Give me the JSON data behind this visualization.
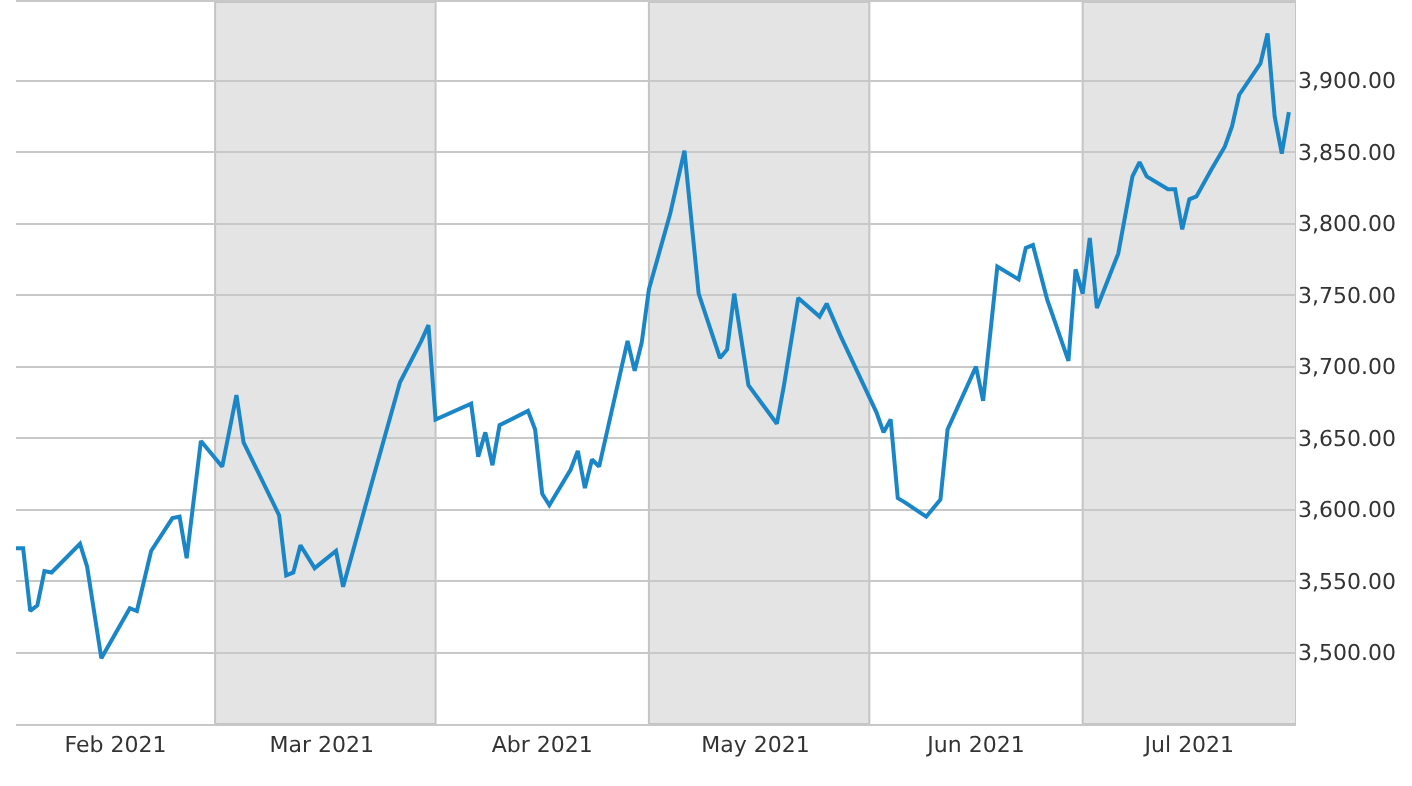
{
  "chart_data": {
    "type": "line",
    "x": [
      "2021-02-01",
      "2021-02-02",
      "2021-02-03",
      "2021-02-04",
      "2021-02-05",
      "2021-02-06",
      "2021-02-10",
      "2021-02-11",
      "2021-02-13",
      "2021-02-17",
      "2021-02-18",
      "2021-02-20",
      "2021-02-23",
      "2021-02-24",
      "2021-02-25",
      "2021-02-27",
      "2021-03-02",
      "2021-03-04",
      "2021-03-05",
      "2021-03-10",
      "2021-03-11",
      "2021-03-12",
      "2021-03-13",
      "2021-03-15",
      "2021-03-18",
      "2021-03-19",
      "2021-03-23",
      "2021-03-27",
      "2021-03-30",
      "2021-03-31",
      "2021-04-01",
      "2021-04-06",
      "2021-04-07",
      "2021-04-08",
      "2021-04-09",
      "2021-04-10",
      "2021-04-14",
      "2021-04-15",
      "2021-04-16",
      "2021-04-17",
      "2021-04-20",
      "2021-04-21",
      "2021-04-22",
      "2021-04-23",
      "2021-04-24",
      "2021-04-28",
      "2021-04-29",
      "2021-04-30",
      "2021-05-01",
      "2021-05-04",
      "2021-05-06",
      "2021-05-08",
      "2021-05-11",
      "2021-05-12",
      "2021-05-13",
      "2021-05-15",
      "2021-05-19",
      "2021-05-20",
      "2021-05-22",
      "2021-05-25",
      "2021-05-26",
      "2021-05-28",
      "2021-06-02",
      "2021-06-03",
      "2021-06-04",
      "2021-06-05",
      "2021-06-06",
      "2021-06-09",
      "2021-06-11",
      "2021-06-12",
      "2021-06-16",
      "2021-06-17",
      "2021-06-19",
      "2021-06-22",
      "2021-06-23",
      "2021-06-24",
      "2021-06-26",
      "2021-06-29",
      "2021-06-30",
      "2021-07-01",
      "2021-07-02",
      "2021-07-03",
      "2021-07-06",
      "2021-07-08",
      "2021-07-09",
      "2021-07-10",
      "2021-07-13",
      "2021-07-14",
      "2021-07-15",
      "2021-07-16",
      "2021-07-17",
      "2021-07-19",
      "2021-07-21",
      "2021-07-22",
      "2021-07-23",
      "2021-07-26",
      "2021-07-27",
      "2021-07-28",
      "2021-07-29",
      "2021-07-30"
    ],
    "series": [
      {
        "color": "#1a86c8",
        "values": [
          3573,
          3573,
          3529,
          3533,
          3557,
          3556,
          3576,
          3560,
          3496,
          3531,
          3529,
          3571,
          3594,
          3595,
          3566,
          3648,
          3630,
          3680,
          3647,
          3596,
          3554,
          3556,
          3575,
          3559,
          3571,
          3546,
          3618,
          3689,
          3718,
          3729,
          3663,
          3674,
          3637,
          3654,
          3631,
          3659,
          3669,
          3656,
          3611,
          3603,
          3628,
          3641,
          3615,
          3635,
          3630,
          3718,
          3697,
          3717,
          3754,
          3807,
          3851,
          3751,
          3706,
          3712,
          3751,
          3687,
          3660,
          3687,
          3748,
          3735,
          3744,
          3721,
          3668,
          3654,
          3663,
          3608,
          3605,
          3595,
          3607,
          3656,
          3700,
          3676,
          3770,
          3761,
          3783,
          3785,
          3747,
          3704,
          3768,
          3751,
          3790,
          3741,
          3779,
          3833,
          3843,
          3833,
          3824,
          3824,
          3796,
          3817,
          3819,
          3837,
          3854,
          3868,
          3890,
          3912,
          3933,
          3875,
          3849,
          3878
        ]
      }
    ],
    "xlim": [
      "2021-02-01",
      "2021-07-31"
    ],
    "xticks": [
      {
        "value": "2021-02-15",
        "label": "Feb 2021"
      },
      {
        "value": "2021-03-16",
        "label": "Mar 2021"
      },
      {
        "value": "2021-04-16",
        "label": "Abr 2021"
      },
      {
        "value": "2021-05-16",
        "label": "May 2021"
      },
      {
        "value": "2021-06-16",
        "label": "Jun 2021"
      },
      {
        "value": "2021-07-16",
        "label": "Jul 2021"
      }
    ],
    "ylim": [
      3450,
      3955
    ],
    "yticks": [
      {
        "value": 3500,
        "label": "3,500.00"
      },
      {
        "value": 3550,
        "label": "3,550.00"
      },
      {
        "value": 3600,
        "label": "3,600.00"
      },
      {
        "value": 3650,
        "label": "3,650.00"
      },
      {
        "value": 3700,
        "label": "3,700.00"
      },
      {
        "value": 3750,
        "label": "3,750.00"
      },
      {
        "value": 3800,
        "label": "3,800.00"
      },
      {
        "value": 3850,
        "label": "3,850.00"
      },
      {
        "value": 3900,
        "label": "3,900.00"
      }
    ],
    "bands": [
      {
        "axis": "x",
        "from": "2021-03-01",
        "to": "2021-04-01",
        "color": "#e4e4e4"
      },
      {
        "axis": "x",
        "from": "2021-05-01",
        "to": "2021-06-01",
        "color": "#e4e4e4"
      },
      {
        "axis": "x",
        "from": "2021-07-01",
        "to": "2021-07-31",
        "color": "#e4e4e4"
      }
    ],
    "grid": "y",
    "marker": "none",
    "line_style": "solid"
  }
}
